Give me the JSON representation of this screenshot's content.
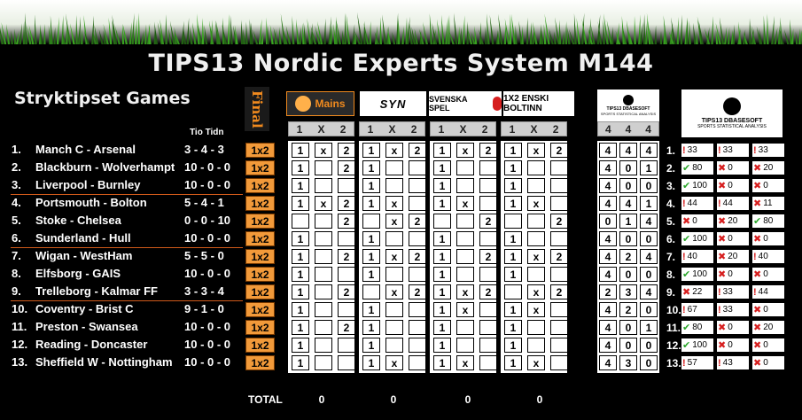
{
  "title": "TIPS13 Nordic Experts System M144",
  "subtitle": "Stryktipset Games",
  "tio_tidn": "Tio Tidn",
  "final_label": "Final",
  "experts": [
    {
      "name": "Mains"
    },
    {
      "name": "SYN"
    },
    {
      "name": "SVENSKA SPEL"
    },
    {
      "name": "1X2 ENSKI BOLTINN"
    }
  ],
  "hdr_labels": [
    "1",
    "X",
    "2"
  ],
  "stats_header": "TIPS13 DBASESOFT",
  "stats_subheader": "SPORTS STATISTICAL ANALYSIS",
  "stats_logo_header": "TIPS13 DBASESOFT",
  "stats_logo_subheader": "SPORTS STATISTICAL ANALYSIS",
  "stats_counts_header": [
    "4",
    "4",
    "4"
  ],
  "final_value": "1x2",
  "matches": [
    {
      "num": "1.",
      "match": "Manch C - Arsenal",
      "score": "3 - 4 - 3",
      "picks": [
        [
          "1",
          "x",
          "2"
        ],
        [
          "1",
          "x",
          "2"
        ],
        [
          "1",
          "x",
          "2"
        ],
        [
          "1",
          "x",
          "2"
        ]
      ],
      "counts": [
        "4",
        "4",
        "4"
      ],
      "pct": [
        [
          "warn",
          "33"
        ],
        [
          "warn",
          "33"
        ],
        [
          "warn",
          "33"
        ]
      ]
    },
    {
      "num": "2.",
      "match": "Blackburn - Wolverhampton",
      "score": "10 - 0 - 0",
      "picks": [
        [
          "1",
          "",
          "2"
        ],
        [
          "1",
          "",
          ""
        ],
        [
          "1",
          "",
          ""
        ],
        [
          "1",
          "",
          ""
        ]
      ],
      "counts": [
        "4",
        "0",
        "1"
      ],
      "pct": [
        [
          "check",
          "80"
        ],
        [
          "x",
          "0"
        ],
        [
          "x",
          "20"
        ]
      ]
    },
    {
      "num": "3.",
      "match": "Liverpool - Burnley",
      "score": "10 - 0 - 0",
      "picks": [
        [
          "1",
          "",
          ""
        ],
        [
          "1",
          "",
          ""
        ],
        [
          "1",
          "",
          ""
        ],
        [
          "1",
          "",
          ""
        ]
      ],
      "counts": [
        "4",
        "0",
        "0"
      ],
      "pct": [
        [
          "check",
          "100"
        ],
        [
          "x",
          "0"
        ],
        [
          "x",
          "0"
        ]
      ]
    },
    {
      "num": "4.",
      "match": "Portsmouth - Bolton",
      "score": "5 - 4 - 1",
      "picks": [
        [
          "1",
          "x",
          "2"
        ],
        [
          "1",
          "x",
          ""
        ],
        [
          "1",
          "x",
          ""
        ],
        [
          "1",
          "x",
          ""
        ]
      ],
      "counts": [
        "4",
        "4",
        "1"
      ],
      "pct": [
        [
          "warn",
          "44"
        ],
        [
          "warn",
          "44"
        ],
        [
          "x",
          "11"
        ]
      ]
    },
    {
      "num": "5.",
      "match": "Stoke - Chelsea",
      "score": "0 - 0 - 10",
      "picks": [
        [
          "",
          "",
          "2"
        ],
        [
          "",
          "x",
          "2"
        ],
        [
          "",
          "",
          "2"
        ],
        [
          "",
          "",
          "2"
        ]
      ],
      "counts": [
        "0",
        "1",
        "4"
      ],
      "pct": [
        [
          "x",
          "0"
        ],
        [
          "x",
          "20"
        ],
        [
          "check",
          "80"
        ]
      ]
    },
    {
      "num": "6.",
      "match": "Sunderland - Hull",
      "score": "10 - 0 - 0",
      "picks": [
        [
          "1",
          "",
          ""
        ],
        [
          "1",
          "",
          ""
        ],
        [
          "1",
          "",
          ""
        ],
        [
          "1",
          "",
          ""
        ]
      ],
      "counts": [
        "4",
        "0",
        "0"
      ],
      "pct": [
        [
          "check",
          "100"
        ],
        [
          "x",
          "0"
        ],
        [
          "x",
          "0"
        ]
      ]
    },
    {
      "num": "7.",
      "match": "Wigan - WestHam",
      "score": "5 - 5 - 0",
      "picks": [
        [
          "1",
          "",
          "2"
        ],
        [
          "1",
          "x",
          "2"
        ],
        [
          "1",
          "",
          "2"
        ],
        [
          "1",
          "x",
          "2"
        ]
      ],
      "counts": [
        "4",
        "2",
        "4"
      ],
      "pct": [
        [
          "warn",
          "40"
        ],
        [
          "x",
          "20"
        ],
        [
          "warn",
          "40"
        ]
      ]
    },
    {
      "num": "8.",
      "match": "Elfsborg - GAIS",
      "score": "10 - 0 - 0",
      "picks": [
        [
          "1",
          "",
          ""
        ],
        [
          "1",
          "",
          ""
        ],
        [
          "1",
          "",
          ""
        ],
        [
          "1",
          "",
          ""
        ]
      ],
      "counts": [
        "4",
        "0",
        "0"
      ],
      "pct": [
        [
          "check",
          "100"
        ],
        [
          "x",
          "0"
        ],
        [
          "x",
          "0"
        ]
      ]
    },
    {
      "num": "9.",
      "match": "Trelleborg - Kalmar FF",
      "score": "3 - 3 - 4",
      "picks": [
        [
          "1",
          "",
          "2"
        ],
        [
          "",
          "x",
          "2"
        ],
        [
          "1",
          "x",
          "2"
        ],
        [
          "",
          "x",
          "2"
        ]
      ],
      "counts": [
        "2",
        "3",
        "4"
      ],
      "pct": [
        [
          "x",
          "22"
        ],
        [
          "warn",
          "33"
        ],
        [
          "warn",
          "44"
        ]
      ]
    },
    {
      "num": "10.",
      "match": "Coventry - Brist C",
      "score": "9 - 1 - 0",
      "picks": [
        [
          "1",
          "",
          ""
        ],
        [
          "1",
          "",
          ""
        ],
        [
          "1",
          "x",
          ""
        ],
        [
          "1",
          "x",
          ""
        ]
      ],
      "counts": [
        "4",
        "2",
        "0"
      ],
      "pct": [
        [
          "warn",
          "67"
        ],
        [
          "warn",
          "33"
        ],
        [
          "x",
          "0"
        ]
      ]
    },
    {
      "num": "11.",
      "match": "Preston - Swansea",
      "score": "10 - 0 - 0",
      "picks": [
        [
          "1",
          "",
          "2"
        ],
        [
          "1",
          "",
          ""
        ],
        [
          "1",
          "",
          ""
        ],
        [
          "1",
          "",
          ""
        ]
      ],
      "counts": [
        "4",
        "0",
        "1"
      ],
      "pct": [
        [
          "check",
          "80"
        ],
        [
          "x",
          "0"
        ],
        [
          "x",
          "20"
        ]
      ]
    },
    {
      "num": "12.",
      "match": "Reading - Doncaster",
      "score": "10 - 0 - 0",
      "picks": [
        [
          "1",
          "",
          ""
        ],
        [
          "1",
          "",
          ""
        ],
        [
          "1",
          "",
          ""
        ],
        [
          "1",
          "",
          ""
        ]
      ],
      "counts": [
        "4",
        "0",
        "0"
      ],
      "pct": [
        [
          "check",
          "100"
        ],
        [
          "x",
          "0"
        ],
        [
          "x",
          "0"
        ]
      ]
    },
    {
      "num": "13.",
      "match": "Sheffield W - Nottingham",
      "score": "10 - 0 - 0",
      "picks": [
        [
          "1",
          "",
          ""
        ],
        [
          "1",
          "x",
          ""
        ],
        [
          "1",
          "x",
          ""
        ],
        [
          "1",
          "x",
          ""
        ]
      ],
      "counts": [
        "4",
        "3",
        "0"
      ],
      "pct": [
        [
          "warn",
          "57"
        ],
        [
          "warn",
          "43"
        ],
        [
          "x",
          "0"
        ]
      ]
    }
  ],
  "total_label": "TOTAL",
  "totals": [
    "0",
    "0",
    "0",
    "0"
  ],
  "icons": {
    "check": "check-icon",
    "x": "x-icon",
    "warn": "exclamation-icon"
  },
  "colors": {
    "final": "#f29a3a",
    "check": "#2aa52a",
    "x": "#d61e1e"
  }
}
